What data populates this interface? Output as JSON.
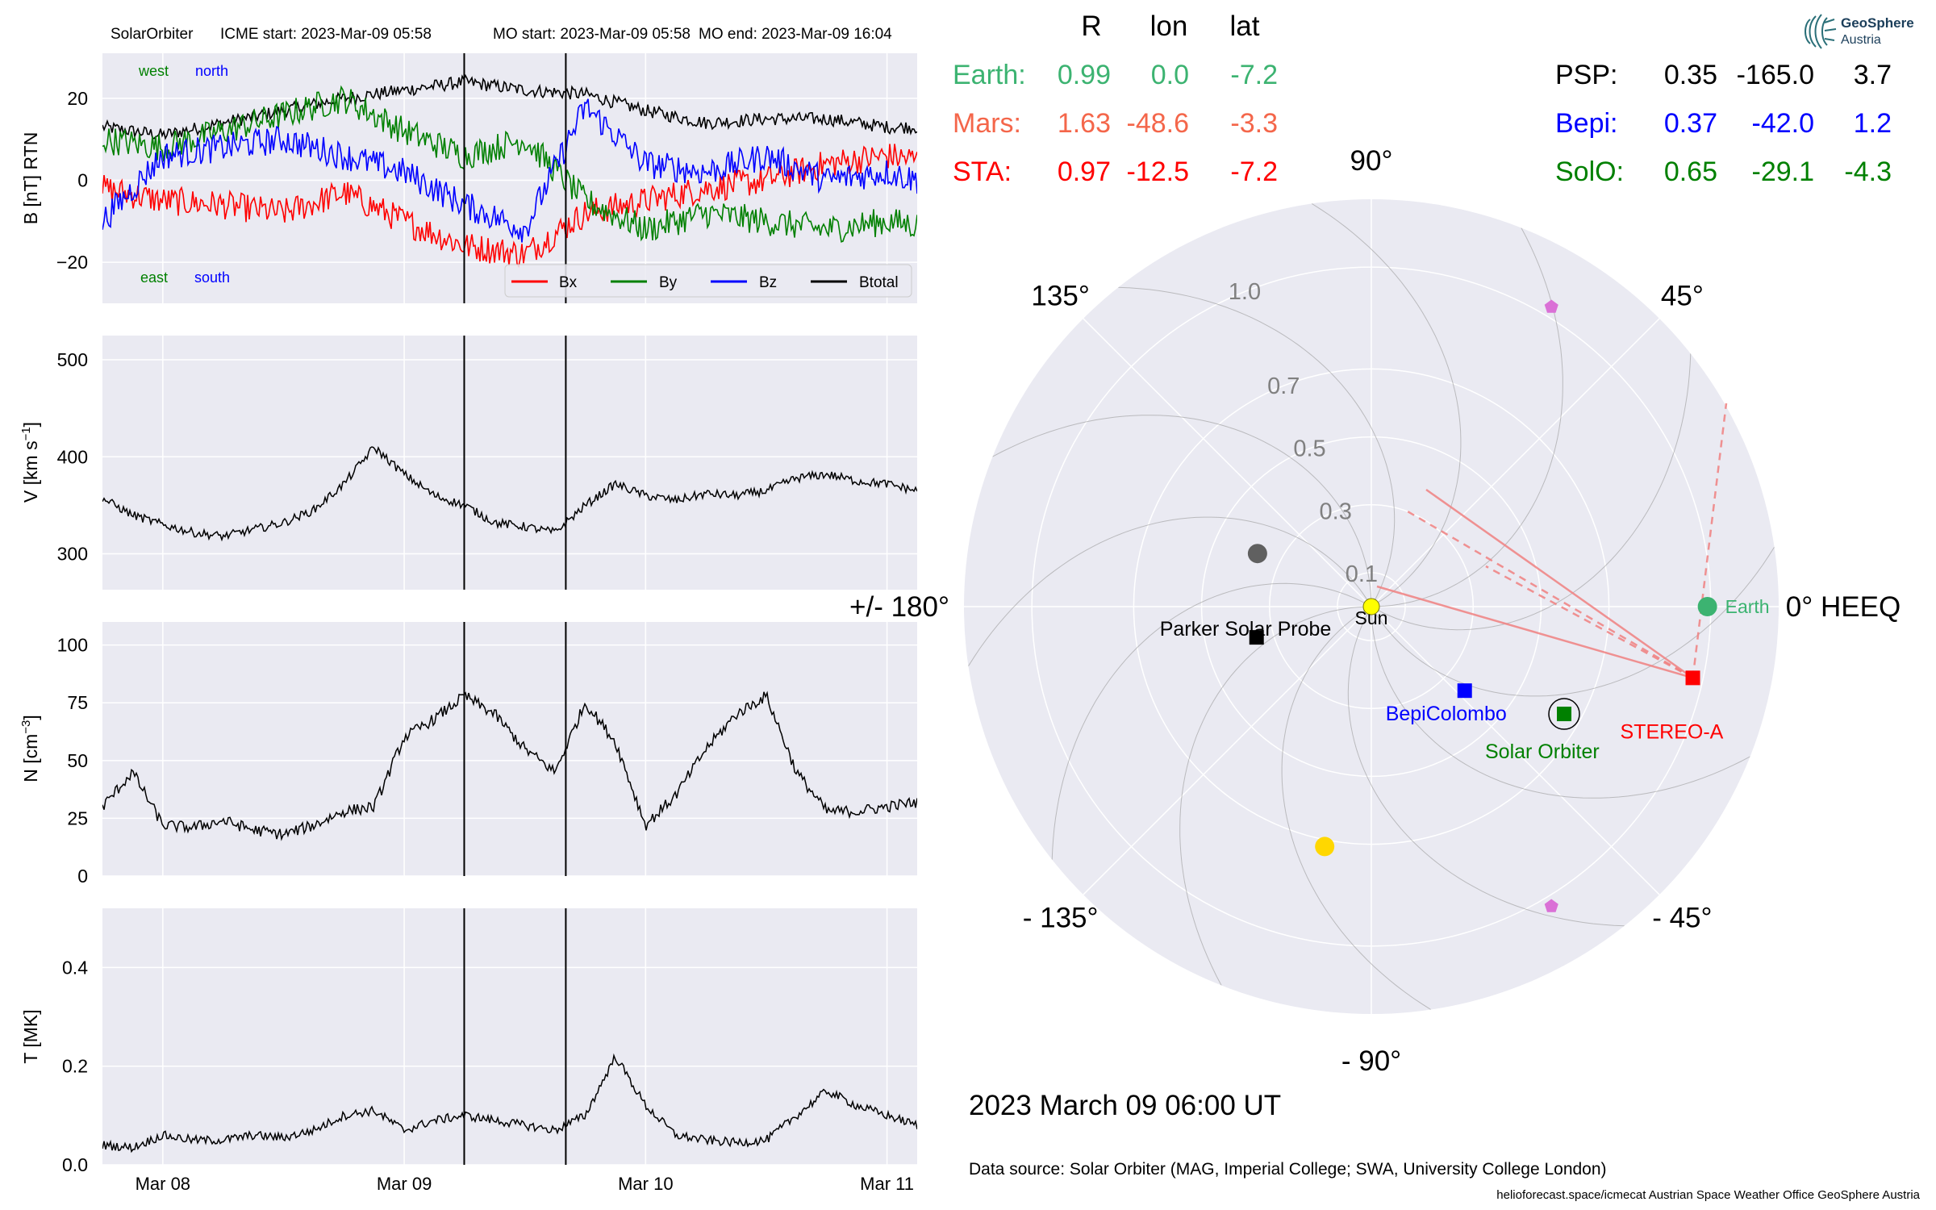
{
  "figure": {
    "header": {
      "mission": "SolarOrbiter",
      "icme_start": "ICME start: 2023-Mar-09 05:58",
      "mo_start": "MO start: 2023-Mar-09 05:58",
      "mo_end": "MO end: 2023-Mar-09 16:04"
    },
    "positions_table": {
      "columns": [
        "R",
        "lon",
        "lat"
      ],
      "left": [
        {
          "name": "Earth:",
          "R": "0.99",
          "lon": "0.0",
          "lat": "-7.2",
          "color": "#3cb371"
        },
        {
          "name": "Mars:",
          "R": "1.63",
          "lon": "-48.6",
          "lat": "-3.3",
          "color": "#f4664a"
        },
        {
          "name": "STA:",
          "R": "0.97",
          "lon": "-12.5",
          "lat": "-7.2",
          "color": "#ff0000"
        }
      ],
      "right": [
        {
          "name": "PSP:",
          "R": "0.35",
          "lon": "-165.0",
          "lat": "3.7",
          "color": "#000000"
        },
        {
          "name": "Bepi:",
          "R": "0.37",
          "lon": "-42.0",
          "lat": "1.2",
          "color": "#0000ff"
        },
        {
          "name": "SolO:",
          "R": "0.65",
          "lon": "-29.1",
          "lat": "-4.3",
          "color": "#008000"
        }
      ]
    },
    "logo": {
      "line1": "GeoSphere",
      "line2": "Austria"
    },
    "date_label": "2023 March 09  06:00 UT",
    "data_source": "Data source: Solar Orbiter (MAG, Imperial College; SWA, University College London)",
    "credits": "helioforecast.space/icmecat   Austrian Space Weather Office   GeoSphere Austria"
  },
  "colors": {
    "panel_bg": "#eaeaf2",
    "grid": "#ffffff",
    "bx": "#ff0000",
    "by": "#008000",
    "bz": "#0000ff",
    "btotal": "#000000",
    "earth": "#3cb371",
    "sta": "#ff0000",
    "solo": "#008000",
    "bepi": "#0000ff",
    "psp": "#000000",
    "sun": "#ffff00",
    "planet_gray": "#606060",
    "planet_gold": "#ffd700",
    "planet_violet": "#da70d6"
  },
  "chart_data": [
    {
      "type": "line",
      "ylabel": "B [nT] RTN",
      "yticks": [
        -20,
        0,
        20
      ],
      "ylim": [
        -30,
        31
      ],
      "grid": true,
      "legend": {
        "position": "bottom-right",
        "entries": [
          "Bx",
          "By",
          "Bz",
          "Btotal"
        ]
      },
      "annotations": {
        "top_left": [
          "west",
          "north"
        ],
        "bottom_left": [
          "east",
          "south"
        ]
      },
      "event_lines": [
        "2023-03-09 05:58",
        "2023-03-09 16:04"
      ],
      "series": [
        {
          "name": "Btotal",
          "color": "#000000",
          "x": [
            "2023-03-07T18:00",
            "2023-03-08T00:00",
            "2023-03-08T06:00",
            "2023-03-08T12:00",
            "2023-03-08T18:00",
            "2023-03-09T00:00",
            "2023-03-09T06:00",
            "2023-03-09T12:00",
            "2023-03-09T18:00",
            "2023-03-10T00:00",
            "2023-03-10T06:00",
            "2023-03-10T12:00",
            "2023-03-10T18:00",
            "2023-03-11T00:00",
            "2023-03-11T03:00"
          ],
          "y": [
            13,
            11,
            14,
            17,
            20,
            22,
            24,
            22,
            21,
            17,
            14,
            15,
            15,
            13,
            13
          ]
        },
        {
          "name": "Bx",
          "color": "#ff0000",
          "x": [
            "2023-03-07T18:00",
            "2023-03-08T00:00",
            "2023-03-08T06:00",
            "2023-03-08T12:00",
            "2023-03-08T18:00",
            "2023-03-09T00:00",
            "2023-03-09T06:00",
            "2023-03-09T12:00",
            "2023-03-09T18:00",
            "2023-03-10T00:00",
            "2023-03-10T06:00",
            "2023-03-10T12:00",
            "2023-03-10T18:00",
            "2023-03-11T00:00",
            "2023-03-11T03:00"
          ],
          "y": [
            -2,
            -5,
            -6,
            -8,
            -3,
            -10,
            -16,
            -18,
            -8,
            -5,
            -2,
            0,
            4,
            6,
            5
          ]
        },
        {
          "name": "By",
          "color": "#008000",
          "x": [
            "2023-03-07T18:00",
            "2023-03-08T00:00",
            "2023-03-08T06:00",
            "2023-03-08T12:00",
            "2023-03-08T18:00",
            "2023-03-09T00:00",
            "2023-03-09T06:00",
            "2023-03-09T12:00",
            "2023-03-09T18:00",
            "2023-03-10T00:00",
            "2023-03-10T06:00",
            "2023-03-10T12:00",
            "2023-03-10T18:00",
            "2023-03-11T00:00",
            "2023-03-11T03:00"
          ],
          "y": [
            10,
            8,
            12,
            16,
            20,
            12,
            6,
            10,
            -5,
            -12,
            -8,
            -10,
            -12,
            -10,
            -11
          ]
        },
        {
          "name": "Bz",
          "color": "#0000ff",
          "x": [
            "2023-03-07T18:00",
            "2023-03-08T00:00",
            "2023-03-08T06:00",
            "2023-03-08T12:00",
            "2023-03-08T18:00",
            "2023-03-09T00:00",
            "2023-03-09T06:00",
            "2023-03-09T12:00",
            "2023-03-09T18:00",
            "2023-03-10T00:00",
            "2023-03-10T06:00",
            "2023-03-10T12:00",
            "2023-03-10T18:00",
            "2023-03-11T00:00",
            "2023-03-11T03:00"
          ],
          "y": [
            -10,
            6,
            8,
            10,
            6,
            2,
            -6,
            -12,
            18,
            4,
            2,
            6,
            0,
            2,
            0
          ]
        }
      ]
    },
    {
      "type": "line",
      "ylabel": "V [km s$^{-1}$]",
      "ylabel_parts": [
        "V [km s",
        "−1",
        "]"
      ],
      "yticks": [
        300,
        400,
        500
      ],
      "ylim": [
        263,
        525
      ],
      "grid": true,
      "event_lines": [
        "2023-03-09 05:58",
        "2023-03-09 16:04"
      ],
      "series": [
        {
          "name": "",
          "color": "#000000",
          "x": [
            "2023-03-07T18:00",
            "2023-03-07T21:00",
            "2023-03-08T00:00",
            "2023-03-08T03:00",
            "2023-03-08T06:00",
            "2023-03-08T09:00",
            "2023-03-08T12:00",
            "2023-03-08T15:00",
            "2023-03-08T18:00",
            "2023-03-08T21:00",
            "2023-03-09T00:00",
            "2023-03-09T03:00",
            "2023-03-09T06:00",
            "2023-03-09T09:00",
            "2023-03-09T12:00",
            "2023-03-09T15:00",
            "2023-03-09T18:00",
            "2023-03-09T21:00",
            "2023-03-10T00:00",
            "2023-03-10T03:00",
            "2023-03-10T06:00",
            "2023-03-10T09:00",
            "2023-03-10T12:00",
            "2023-03-10T15:00",
            "2023-03-10T18:00",
            "2023-03-10T21:00",
            "2023-03-11T00:00",
            "2023-03-11T03:00"
          ],
          "y": [
            357,
            340,
            330,
            322,
            318,
            325,
            332,
            345,
            372,
            410,
            382,
            360,
            350,
            332,
            328,
            322,
            350,
            372,
            360,
            355,
            362,
            360,
            365,
            378,
            382,
            375,
            372,
            365
          ]
        }
      ]
    },
    {
      "type": "line",
      "ylabel": "N [cm$^{-3}$]",
      "ylabel_parts": [
        "N [cm",
        "−3",
        "]"
      ],
      "yticks": [
        0,
        25,
        50,
        75,
        100
      ],
      "ylim": [
        0,
        110
      ],
      "grid": true,
      "event_lines": [
        "2023-03-09 05:58",
        "2023-03-09 16:04"
      ],
      "series": [
        {
          "name": "",
          "color": "#000000",
          "x": [
            "2023-03-07T18:00",
            "2023-03-07T21:00",
            "2023-03-08T00:00",
            "2023-03-08T03:00",
            "2023-03-08T06:00",
            "2023-03-08T09:00",
            "2023-03-08T12:00",
            "2023-03-08T15:00",
            "2023-03-08T18:00",
            "2023-03-08T21:00",
            "2023-03-09T00:00",
            "2023-03-09T03:00",
            "2023-03-09T06:00",
            "2023-03-09T09:00",
            "2023-03-09T12:00",
            "2023-03-09T15:00",
            "2023-03-09T18:00",
            "2023-03-09T21:00",
            "2023-03-10T00:00",
            "2023-03-10T03:00",
            "2023-03-10T06:00",
            "2023-03-10T09:00",
            "2023-03-10T12:00",
            "2023-03-10T15:00",
            "2023-03-10T18:00",
            "2023-03-10T21:00",
            "2023-03-11T00:00",
            "2023-03-11T03:00"
          ],
          "y": [
            30,
            45,
            22,
            21,
            24,
            20,
            18,
            22,
            28,
            30,
            60,
            68,
            78,
            70,
            55,
            45,
            75,
            58,
            22,
            35,
            55,
            70,
            78,
            45,
            28,
            28,
            30,
            32
          ]
        }
      ]
    },
    {
      "type": "line",
      "ylabel": "T [MK]",
      "yticks": [
        0.0,
        0.2,
        0.4
      ],
      "ytick_labels": [
        "0.0",
        "0.2",
        "0.4"
      ],
      "ylim": [
        0,
        0.52
      ],
      "grid": true,
      "xticks": [
        "Mar 08",
        "Mar 09",
        "Mar 10",
        "Mar 11"
      ],
      "event_lines": [
        "2023-03-09 05:58",
        "2023-03-09 16:04"
      ],
      "series": [
        {
          "name": "",
          "color": "#000000",
          "x": [
            "2023-03-07T18:00",
            "2023-03-07T21:00",
            "2023-03-08T00:00",
            "2023-03-08T03:00",
            "2023-03-08T06:00",
            "2023-03-08T09:00",
            "2023-03-08T12:00",
            "2023-03-08T15:00",
            "2023-03-08T18:00",
            "2023-03-08T21:00",
            "2023-03-09T00:00",
            "2023-03-09T03:00",
            "2023-03-09T06:00",
            "2023-03-09T09:00",
            "2023-03-09T12:00",
            "2023-03-09T15:00",
            "2023-03-09T18:00",
            "2023-03-09T21:00",
            "2023-03-10T00:00",
            "2023-03-10T03:00",
            "2023-03-10T06:00",
            "2023-03-10T09:00",
            "2023-03-10T12:00",
            "2023-03-10T15:00",
            "2023-03-10T18:00",
            "2023-03-10T21:00",
            "2023-03-11T00:00",
            "2023-03-11T03:00"
          ],
          "y": [
            0.04,
            0.035,
            0.06,
            0.05,
            0.05,
            0.06,
            0.055,
            0.07,
            0.1,
            0.11,
            0.07,
            0.09,
            0.1,
            0.09,
            0.08,
            0.07,
            0.1,
            0.22,
            0.12,
            0.06,
            0.05,
            0.045,
            0.05,
            0.1,
            0.15,
            0.12,
            0.1,
            0.08
          ]
        }
      ]
    },
    {
      "type": "scatter",
      "subtype": "polar",
      "angle_labels": [
        "0° HEEQ",
        "45°",
        "90°",
        "135°",
        "+/- 180°",
        "- 135°",
        "- 90°",
        "- 45°"
      ],
      "angle_values_deg": [
        0,
        45,
        90,
        135,
        180,
        -135,
        -90,
        -45
      ],
      "radial_ticks": [
        0.1,
        0.3,
        0.5,
        0.7,
        1.0
      ],
      "radial_tick_labels": [
        "0.1",
        "0.3",
        "0.5",
        "0.7",
        "1.0"
      ],
      "r_max": 1.2,
      "bodies": [
        {
          "name": "Sun",
          "label": "Sun",
          "r": 0.0,
          "lon": 0.0,
          "marker": "circle",
          "color": "#ffff00"
        },
        {
          "name": "Earth",
          "label": "Earth",
          "r": 0.99,
          "lon": 0.0,
          "marker": "circle",
          "color": "#3cb371"
        },
        {
          "name": "STEREO-A",
          "label": "STEREO-A",
          "r": 0.97,
          "lon": -12.5,
          "marker": "square",
          "color": "#ff0000"
        },
        {
          "name": "Solar Orbiter",
          "label": "Solar Orbiter",
          "r": 0.65,
          "lon": -29.1,
          "marker": "square",
          "color": "#008000"
        },
        {
          "name": "BepiColombo",
          "label": "BepiColombo",
          "r": 0.37,
          "lon": -42.0,
          "marker": "square",
          "color": "#0000ff"
        },
        {
          "name": "Parker Solar Probe",
          "label": "Parker Solar Probe",
          "r": 0.35,
          "lon": -165.0,
          "marker": "square",
          "color": "#000000"
        },
        {
          "name": "planet-gray",
          "label": "",
          "r": 0.37,
          "lon": 155.0,
          "marker": "circle",
          "color": "#606060"
        },
        {
          "name": "planet-gold",
          "label": "",
          "r": 0.72,
          "lon": -101.0,
          "marker": "circle",
          "color": "#ffd700"
        },
        {
          "name": "planet-violet-north",
          "label": "",
          "r": 1.03,
          "lon": 59.0,
          "marker": "pentagon",
          "color": "#da70d6"
        },
        {
          "name": "planet-violet-south",
          "label": "",
          "r": 1.03,
          "lon": -59.0,
          "marker": "pentagon",
          "color": "#da70d6"
        }
      ]
    }
  ]
}
